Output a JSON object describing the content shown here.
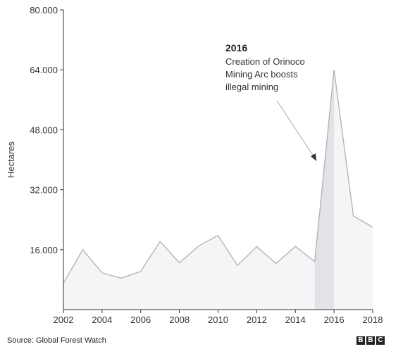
{
  "chart_data": {
    "type": "area",
    "x": [
      2002,
      2003,
      2004,
      2005,
      2006,
      2007,
      2008,
      2009,
      2010,
      2011,
      2012,
      2013,
      2014,
      2015,
      2016,
      2017,
      2018
    ],
    "values": [
      7000,
      16000,
      9800,
      8400,
      10200,
      18200,
      12500,
      17000,
      19800,
      11800,
      16800,
      12300,
      16900,
      12800,
      64000,
      25000,
      22000
    ],
    "ylabel": "Hectares",
    "ylim": [
      0,
      80000
    ],
    "xlim": [
      2002,
      2018
    ],
    "yticks": [
      16000,
      32000,
      48000,
      64000,
      80000
    ],
    "ytick_labels": [
      "16.000",
      "32.000",
      "48.000",
      "64.000",
      "80.000"
    ],
    "xticks": [
      2002,
      2004,
      2006,
      2008,
      2010,
      2012,
      2014,
      2016,
      2018
    ],
    "xtick_labels": [
      "2002",
      "2004",
      "2006",
      "2008",
      "2010",
      "2012",
      "2014",
      "2016",
      "2018"
    ],
    "highlight": {
      "from": 2015,
      "to": 2016
    },
    "annotation": {
      "title": "2016",
      "lines": [
        "Creation of Orinoco",
        "Mining Arc boosts",
        "illegal mining"
      ]
    },
    "grid": false,
    "colors": {
      "line": "#b0b0b0",
      "fill": "#f5f5f7",
      "highlight": "#e2e2e8",
      "axis": "#333333"
    }
  },
  "footer": {
    "source": "Source: Global Forest Watch",
    "logo_letters": [
      "B",
      "B",
      "C"
    ]
  }
}
